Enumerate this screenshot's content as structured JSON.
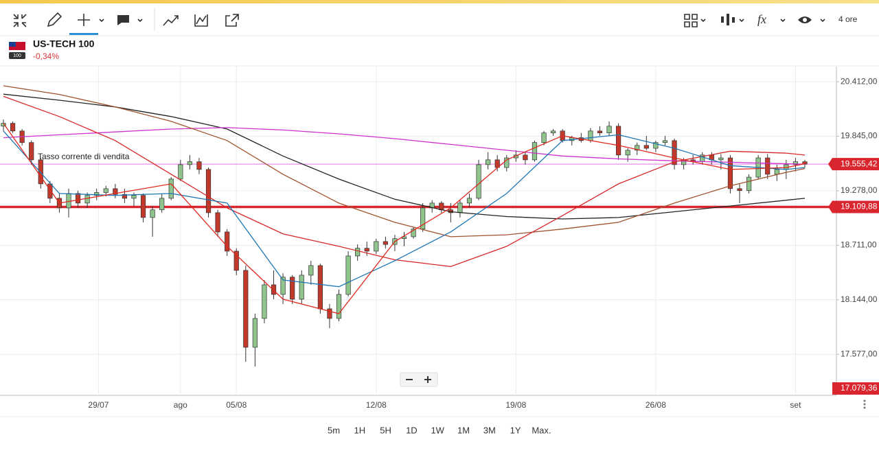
{
  "toolbar": {
    "timeframe": "4 ore"
  },
  "instrument": {
    "name": "US-TECH 100",
    "flag_label": "100",
    "change": "-0,34%"
  },
  "annotation": "Tasso corrente di vendita",
  "price_labels": {
    "current": {
      "value": 19555.42,
      "label": "19.555,42"
    },
    "level": {
      "value": 19109.88,
      "label": "19.109,88"
    },
    "bottom": {
      "value": 17079.36,
      "label": "17.079,36"
    }
  },
  "periods": [
    "5m",
    "1H",
    "5H",
    "1D",
    "1W",
    "1M",
    "3M",
    "1Y",
    "Max."
  ],
  "chart_data": {
    "type": "candlestick",
    "xlim": [
      0,
      86
    ],
    "ylim": [
      17150,
      20570
    ],
    "yticks": [
      {
        "value": 20412,
        "label": "20.412,00"
      },
      {
        "value": 19845,
        "label": "19.845,00"
      },
      {
        "value": 19278,
        "label": "19.278,00"
      },
      {
        "value": 18711,
        "label": "18.711,00"
      },
      {
        "value": 18144,
        "label": "18.144,00"
      },
      {
        "value": 17577,
        "label": "17.577,00"
      }
    ],
    "xticks": [
      {
        "value": 10.2,
        "label": "29/07"
      },
      {
        "value": 19,
        "label": "ago"
      },
      {
        "value": 25,
        "label": "05/08"
      },
      {
        "value": 40,
        "label": "12/08"
      },
      {
        "value": 55,
        "label": "19/08"
      },
      {
        "value": 70,
        "label": "26/08"
      },
      {
        "value": 85,
        "label": "set"
      }
    ],
    "grid": true,
    "up_color": "#8fc48c",
    "down_color": "#c0392b",
    "ohlc": [
      [
        19950,
        20020,
        19900,
        19980
      ],
      [
        19980,
        20000,
        19880,
        19900
      ],
      [
        19900,
        19920,
        19750,
        19780
      ],
      [
        19780,
        19800,
        19550,
        19600
      ],
      [
        19600,
        19620,
        19300,
        19350
      ],
      [
        19350,
        19380,
        19150,
        19200
      ],
      [
        19200,
        19250,
        19050,
        19100
      ],
      [
        19100,
        19300,
        19000,
        19250
      ],
      [
        19250,
        19280,
        19100,
        19150
      ],
      [
        19150,
        19260,
        19100,
        19230
      ],
      [
        19230,
        19300,
        19180,
        19260
      ],
      [
        19260,
        19330,
        19220,
        19300
      ],
      [
        19300,
        19350,
        19200,
        19240
      ],
      [
        19240,
        19300,
        19150,
        19200
      ],
      [
        19200,
        19260,
        19120,
        19230
      ],
      [
        19230,
        19250,
        18950,
        19000
      ],
      [
        19000,
        19120,
        18800,
        19080
      ],
      [
        19080,
        19250,
        19050,
        19200
      ],
      [
        19200,
        19420,
        19180,
        19400
      ],
      [
        19400,
        19600,
        19380,
        19550
      ],
      [
        19550,
        19650,
        19500,
        19580
      ],
      [
        19580,
        19620,
        19450,
        19500
      ],
      [
        19500,
        19520,
        19000,
        19050
      ],
      [
        19050,
        19080,
        18800,
        18850
      ],
      [
        18850,
        18880,
        18600,
        18650
      ],
      [
        18650,
        18680,
        18400,
        18450
      ],
      [
        18450,
        18500,
        17500,
        17650
      ],
      [
        17650,
        18000,
        17450,
        17950
      ],
      [
        17950,
        18350,
        17900,
        18300
      ],
      [
        18300,
        18450,
        18150,
        18200
      ],
      [
        18200,
        18420,
        18100,
        18380
      ],
      [
        18380,
        18400,
        18100,
        18150
      ],
      [
        18150,
        18450,
        18100,
        18400
      ],
      [
        18400,
        18550,
        18300,
        18500
      ],
      [
        18500,
        18520,
        18000,
        18050
      ],
      [
        18050,
        18100,
        17850,
        17950
      ],
      [
        17950,
        18250,
        17920,
        18200
      ],
      [
        18200,
        18650,
        18180,
        18600
      ],
      [
        18600,
        18720,
        18550,
        18680
      ],
      [
        18680,
        18750,
        18600,
        18650
      ],
      [
        18650,
        18780,
        18620,
        18750
      ],
      [
        18750,
        18800,
        18680,
        18720
      ],
      [
        18720,
        18820,
        18650,
        18780
      ],
      [
        18780,
        18850,
        18700,
        18800
      ],
      [
        18800,
        18900,
        18780,
        18880
      ],
      [
        18880,
        19150,
        18850,
        19100
      ],
      [
        19100,
        19180,
        19050,
        19150
      ],
      [
        19150,
        19170,
        19050,
        19080
      ],
      [
        19080,
        19150,
        18950,
        19050
      ],
      [
        19050,
        19180,
        19000,
        19150
      ],
      [
        19150,
        19250,
        19100,
        19200
      ],
      [
        19200,
        19600,
        19180,
        19550
      ],
      [
        19550,
        19680,
        19500,
        19600
      ],
      [
        19600,
        19650,
        19480,
        19520
      ],
      [
        19520,
        19650,
        19480,
        19620
      ],
      [
        19620,
        19700,
        19580,
        19650
      ],
      [
        19650,
        19680,
        19550,
        19600
      ],
      [
        19600,
        19800,
        19580,
        19780
      ],
      [
        19780,
        19900,
        19750,
        19880
      ],
      [
        19880,
        19920,
        19850,
        19900
      ],
      [
        19900,
        19920,
        19780,
        19800
      ],
      [
        19800,
        19850,
        19750,
        19830
      ],
      [
        19830,
        19880,
        19780,
        19800
      ],
      [
        19800,
        19930,
        19780,
        19900
      ],
      [
        19900,
        19950,
        19850,
        19880
      ],
      [
        19880,
        20000,
        19850,
        19950
      ],
      [
        19950,
        19980,
        19600,
        19650
      ],
      [
        19650,
        19720,
        19580,
        19700
      ],
      [
        19700,
        19780,
        19650,
        19750
      ],
      [
        19750,
        19850,
        19700,
        19720
      ],
      [
        19720,
        19800,
        19680,
        19780
      ],
      [
        19780,
        19850,
        19750,
        19800
      ],
      [
        19800,
        19820,
        19500,
        19550
      ],
      [
        19550,
        19620,
        19500,
        19600
      ],
      [
        19600,
        19650,
        19550,
        19580
      ],
      [
        19580,
        19680,
        19550,
        19650
      ],
      [
        19650,
        19680,
        19550,
        19600
      ],
      [
        19600,
        19660,
        19500,
        19620
      ],
      [
        19620,
        19650,
        19250,
        19300
      ],
      [
        19300,
        19350,
        19150,
        19280
      ],
      [
        19280,
        19450,
        19250,
        19420
      ],
      [
        19420,
        19650,
        19400,
        19620
      ],
      [
        19620,
        19660,
        19400,
        19450
      ],
      [
        19450,
        19550,
        19380,
        19500
      ],
      [
        19500,
        19600,
        19400,
        19550
      ],
      [
        19550,
        19620,
        19480,
        19580
      ],
      [
        19580,
        19600,
        19520,
        19555
      ]
    ],
    "line_x": [
      0,
      6,
      12,
      18,
      24,
      30,
      36,
      42,
      48,
      54,
      60,
      66,
      72,
      78,
      84,
      86
    ],
    "lines": [
      {
        "color": "#222222",
        "values": [
          20283,
          20220,
          20150,
          20050,
          19920,
          19640,
          19400,
          19190,
          19060,
          19010,
          18985,
          19000,
          19060,
          19120,
          19180,
          19200
        ]
      },
      {
        "color": "#cc33cc",
        "values": [
          19830,
          19860,
          19890,
          19920,
          19935,
          19910,
          19870,
          19820,
          19760,
          19700,
          19640,
          19610,
          19590,
          19575,
          19560,
          19555
        ]
      },
      {
        "color": "#a0522d",
        "values": [
          20370,
          20280,
          20150,
          20000,
          19800,
          19450,
          19150,
          18950,
          18800,
          18820,
          18880,
          18950,
          19150,
          19330,
          19470,
          19510
        ]
      },
      {
        "color": "#d62728",
        "values": [
          20260,
          20050,
          19800,
          19450,
          19100,
          18830,
          18700,
          18560,
          18490,
          18700,
          19020,
          19350,
          19580,
          19690,
          19670,
          19650
        ]
      },
      {
        "color": "#1f77b4",
        "values": [
          19900,
          19250,
          19230,
          19250,
          19150,
          18350,
          18280,
          18550,
          18850,
          19250,
          19800,
          19860,
          19720,
          19540,
          19500,
          19520
        ]
      },
      {
        "color": "#e0281e",
        "values": [
          19980,
          19150,
          19250,
          19350,
          18700,
          18150,
          18000,
          18750,
          19100,
          19600,
          19850,
          19750,
          19620,
          19500,
          19520,
          19560
        ]
      }
    ]
  }
}
